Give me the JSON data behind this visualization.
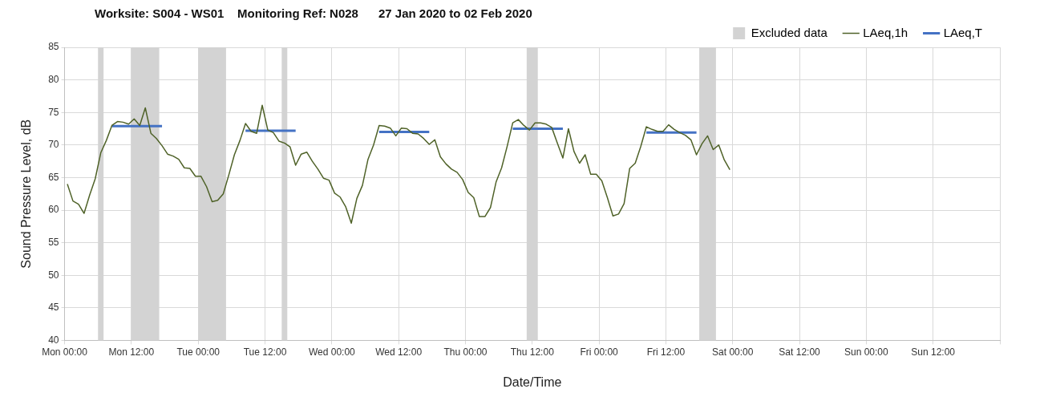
{
  "chart_data": {
    "type": "line",
    "title": "Worksite: S004 - WS01    Monitoring Ref: N028      27 Jan 2020 to 02 Feb 2020",
    "xlabel": "Date/Time",
    "ylabel": "Sound Pressure Level, dB",
    "xlim": [
      "2020-01-27T00:00",
      "2020-02-03T00:00"
    ],
    "ylim": [
      40,
      85
    ],
    "xticks": [
      {
        "value": "2020-01-27T00:00",
        "label": "Mon 00:00"
      },
      {
        "value": "2020-01-27T12:00",
        "label": "Mon 12:00"
      },
      {
        "value": "2020-01-28T00:00",
        "label": "Tue 00:00"
      },
      {
        "value": "2020-01-28T12:00",
        "label": "Tue 12:00"
      },
      {
        "value": "2020-01-29T00:00",
        "label": "Wed 00:00"
      },
      {
        "value": "2020-01-29T12:00",
        "label": "Wed 12:00"
      },
      {
        "value": "2020-01-30T00:00",
        "label": "Thu 00:00"
      },
      {
        "value": "2020-01-30T12:00",
        "label": "Thu 12:00"
      },
      {
        "value": "2020-01-31T00:00",
        "label": "Fri 00:00"
      },
      {
        "value": "2020-01-31T12:00",
        "label": "Fri 12:00"
      },
      {
        "value": "2020-02-01T00:00",
        "label": "Sat 00:00"
      },
      {
        "value": "2020-02-01T12:00",
        "label": "Sat 12:00"
      },
      {
        "value": "2020-02-02T00:00",
        "label": "Sun 00:00"
      },
      {
        "value": "2020-02-02T12:00",
        "label": "Sun 12:00"
      },
      {
        "value": "2020-02-03T00:00",
        "label": null
      }
    ],
    "yticks": [
      40,
      45,
      50,
      55,
      60,
      65,
      70,
      75,
      80,
      85
    ],
    "grid": true,
    "legend": "top right",
    "marker": "none",
    "line_style": "solid",
    "bands": [
      {
        "axis": "x",
        "from": "2020-01-27T06:00",
        "to": "2020-01-27T07:00",
        "label": "Excluded data",
        "color": "#d3d3d3"
      },
      {
        "axis": "x",
        "from": "2020-01-27T12:00",
        "to": "2020-01-27T17:00",
        "color": "#d3d3d3"
      },
      {
        "axis": "x",
        "from": "2020-01-28T00:00",
        "to": "2020-01-28T05:00",
        "color": "#d3d3d3"
      },
      {
        "axis": "x",
        "from": "2020-01-28T15:00",
        "to": "2020-01-28T16:00",
        "color": "#d3d3d3"
      },
      {
        "axis": "x",
        "from": "2020-01-30T11:00",
        "to": "2020-01-30T13:00",
        "color": "#d3d3d3"
      },
      {
        "axis": "x",
        "from": "2020-01-31T18:00",
        "to": "2020-01-31T21:00",
        "color": "#d3d3d3"
      }
    ],
    "series": [
      {
        "name": "LAeq,1h",
        "color": "#4f6228",
        "x": [
          "2020-01-27T00:30",
          "2020-01-27T01:30",
          "2020-01-27T02:30",
          "2020-01-27T03:30",
          "2020-01-27T04:30",
          "2020-01-27T05:30",
          "2020-01-27T06:30",
          "2020-01-27T07:30",
          "2020-01-27T08:30",
          "2020-01-27T09:30",
          "2020-01-27T10:30",
          "2020-01-27T11:30",
          "2020-01-27T12:30",
          "2020-01-27T13:30",
          "2020-01-27T14:30",
          "2020-01-27T15:30",
          "2020-01-27T16:30",
          "2020-01-27T17:30",
          "2020-01-27T18:30",
          "2020-01-27T19:30",
          "2020-01-27T20:30",
          "2020-01-27T21:30",
          "2020-01-27T22:30",
          "2020-01-27T23:30",
          "2020-01-28T00:30",
          "2020-01-28T01:30",
          "2020-01-28T02:30",
          "2020-01-28T03:30",
          "2020-01-28T04:30",
          "2020-01-28T05:30",
          "2020-01-28T06:30",
          "2020-01-28T07:30",
          "2020-01-28T08:30",
          "2020-01-28T09:30",
          "2020-01-28T10:30",
          "2020-01-28T11:30",
          "2020-01-28T12:30",
          "2020-01-28T13:30",
          "2020-01-28T14:30",
          "2020-01-28T15:30",
          "2020-01-28T16:30",
          "2020-01-28T17:30",
          "2020-01-28T18:30",
          "2020-01-28T19:30",
          "2020-01-28T20:30",
          "2020-01-28T21:30",
          "2020-01-28T22:30",
          "2020-01-28T23:30",
          "2020-01-29T00:30",
          "2020-01-29T01:30",
          "2020-01-29T02:30",
          "2020-01-29T03:30",
          "2020-01-29T04:30",
          "2020-01-29T05:30",
          "2020-01-29T06:30",
          "2020-01-29T07:30",
          "2020-01-29T08:30",
          "2020-01-29T09:30",
          "2020-01-29T10:30",
          "2020-01-29T11:30",
          "2020-01-29T12:30",
          "2020-01-29T13:30",
          "2020-01-29T14:30",
          "2020-01-29T15:30",
          "2020-01-29T16:30",
          "2020-01-29T17:30",
          "2020-01-29T18:30",
          "2020-01-29T19:30",
          "2020-01-29T20:30",
          "2020-01-29T21:30",
          "2020-01-29T22:30",
          "2020-01-29T23:30",
          "2020-01-30T00:30",
          "2020-01-30T01:30",
          "2020-01-30T02:30",
          "2020-01-30T03:30",
          "2020-01-30T04:30",
          "2020-01-30T05:30",
          "2020-01-30T06:30",
          "2020-01-30T07:30",
          "2020-01-30T08:30",
          "2020-01-30T09:30",
          "2020-01-30T10:30",
          "2020-01-30T11:30",
          "2020-01-30T12:30",
          "2020-01-30T13:30",
          "2020-01-30T14:30",
          "2020-01-30T15:30",
          "2020-01-30T16:30",
          "2020-01-30T17:30",
          "2020-01-30T18:30",
          "2020-01-30T19:30",
          "2020-01-30T20:30",
          "2020-01-30T21:30",
          "2020-01-30T22:30",
          "2020-01-30T23:30",
          "2020-01-31T00:30",
          "2020-01-31T01:30",
          "2020-01-31T02:30",
          "2020-01-31T03:30",
          "2020-01-31T04:30",
          "2020-01-31T05:30",
          "2020-01-31T06:30",
          "2020-01-31T07:30",
          "2020-01-31T08:30",
          "2020-01-31T09:30",
          "2020-01-31T10:30",
          "2020-01-31T11:30",
          "2020-01-31T12:30",
          "2020-01-31T13:30",
          "2020-01-31T14:30",
          "2020-01-31T15:30",
          "2020-01-31T16:30",
          "2020-01-31T17:30",
          "2020-01-31T18:30",
          "2020-01-31T19:30",
          "2020-01-31T20:30",
          "2020-01-31T21:30",
          "2020-01-31T22:30",
          "2020-01-31T23:30"
        ],
        "values": [
          64.0,
          61.4,
          60.9,
          59.5,
          62.3,
          64.8,
          68.8,
          70.7,
          73.0,
          73.6,
          73.5,
          73.2,
          74.0,
          73.0,
          75.7,
          71.8,
          71.0,
          69.9,
          68.6,
          68.3,
          67.8,
          66.5,
          66.4,
          65.2,
          65.2,
          63.6,
          61.3,
          61.5,
          62.5,
          65.4,
          68.5,
          70.7,
          73.3,
          72.1,
          71.8,
          76.1,
          72.3,
          71.9,
          70.6,
          70.3,
          69.7,
          66.9,
          68.6,
          68.9,
          67.5,
          66.3,
          64.9,
          64.6,
          62.6,
          62.0,
          60.5,
          58.0,
          61.8,
          63.8,
          67.8,
          70.0,
          73.0,
          72.9,
          72.6,
          71.4,
          72.6,
          72.5,
          71.8,
          71.7,
          71.0,
          70.1,
          70.8,
          68.2,
          67.1,
          66.3,
          65.8,
          64.7,
          62.7,
          61.9,
          59.0,
          59.0,
          60.4,
          64.3,
          66.5,
          69.8,
          73.4,
          73.9,
          73.0,
          72.3,
          73.4,
          73.4,
          73.2,
          72.7,
          70.3,
          68.0,
          72.5,
          69.0,
          67.2,
          68.5,
          65.5,
          65.5,
          64.5,
          61.9,
          59.1,
          59.4,
          61.0,
          66.4,
          67.2,
          69.8,
          72.8,
          72.4,
          72.1,
          72.1,
          73.1,
          72.4,
          71.9,
          71.5,
          70.8,
          68.5,
          70.2,
          71.4,
          69.3,
          70.0,
          67.7,
          66.2
        ]
      },
      {
        "name": "LAeq,T",
        "color": "#4472c4",
        "x": [
          "2020-01-27T08:30",
          "2020-01-27T17:30",
          "2020-01-27T20:00",
          "2020-01-28T08:30",
          "2020-01-28T17:30",
          "2020-01-28T20:00",
          "2020-01-29T08:30",
          "2020-01-29T17:30",
          "2020-01-29T22:00",
          "2020-01-30T08:30",
          "2020-01-30T17:30",
          "2020-01-30T23:00",
          "2020-01-31T08:30",
          "2020-01-31T17:30"
        ],
        "values": [
          72.9,
          72.9,
          null,
          72.2,
          72.2,
          null,
          72.0,
          72.0,
          null,
          72.5,
          72.5,
          null,
          71.9,
          71.9
        ]
      }
    ]
  }
}
